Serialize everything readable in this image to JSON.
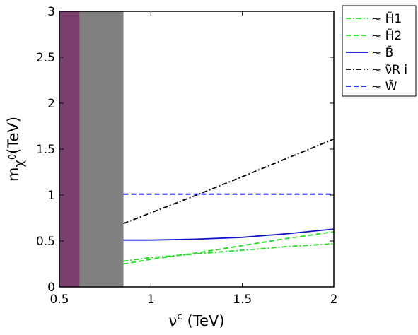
{
  "chart_data": {
    "type": "line",
    "xlabel": "ν^c (TeV)",
    "ylabel": "m_χ0(TeV)",
    "xlim": [
      0.5,
      2.0
    ],
    "ylim": [
      0,
      3
    ],
    "xticks": [
      "0.5",
      "1",
      "1.5",
      "2"
    ],
    "yticks": [
      "0",
      "0.5",
      "1",
      "1.5",
      "2",
      "2.5",
      "3"
    ],
    "shaded_regions": [
      {
        "x": [
          0.5,
          0.61
        ],
        "color": "#7b3f6e"
      },
      {
        "x": [
          0.61,
          0.85
        ],
        "color": "#808080"
      }
    ],
    "legend_position": "outside-top-right",
    "series": [
      {
        "name": "∼ H̃1",
        "color": "#22dd22",
        "dash": "dashdot",
        "x": [
          0.85,
          1.0,
          1.25,
          1.5,
          1.75,
          2.0
        ],
        "y": [
          0.28,
          0.32,
          0.36,
          0.4,
          0.44,
          0.47
        ]
      },
      {
        "name": "∼ H̃2",
        "color": "#22dd22",
        "dash": "dashed",
        "x": [
          0.85,
          1.0,
          1.25,
          1.5,
          1.75,
          2.0
        ],
        "y": [
          0.25,
          0.3,
          0.37,
          0.45,
          0.53,
          0.6
        ]
      },
      {
        "name": "∼ B̃",
        "color": "#1111cc",
        "dash": "solid",
        "x": [
          0.85,
          1.0,
          1.25,
          1.5,
          1.75,
          2.0
        ],
        "y": [
          0.51,
          0.51,
          0.52,
          0.54,
          0.58,
          0.63
        ]
      },
      {
        "name": "∼ ν̃R i",
        "color": "#000000",
        "dash": "dashdot",
        "x": [
          0.85,
          1.25,
          1.5,
          2.0
        ],
        "y": [
          0.69,
          1.0,
          1.2,
          1.61
        ]
      },
      {
        "name": "∼ W̃",
        "color": "#1111ee",
        "dash": "dashed",
        "x": [
          0.85,
          1.5,
          2.0
        ],
        "y": [
          1.01,
          1.01,
          1.01
        ]
      }
    ]
  }
}
